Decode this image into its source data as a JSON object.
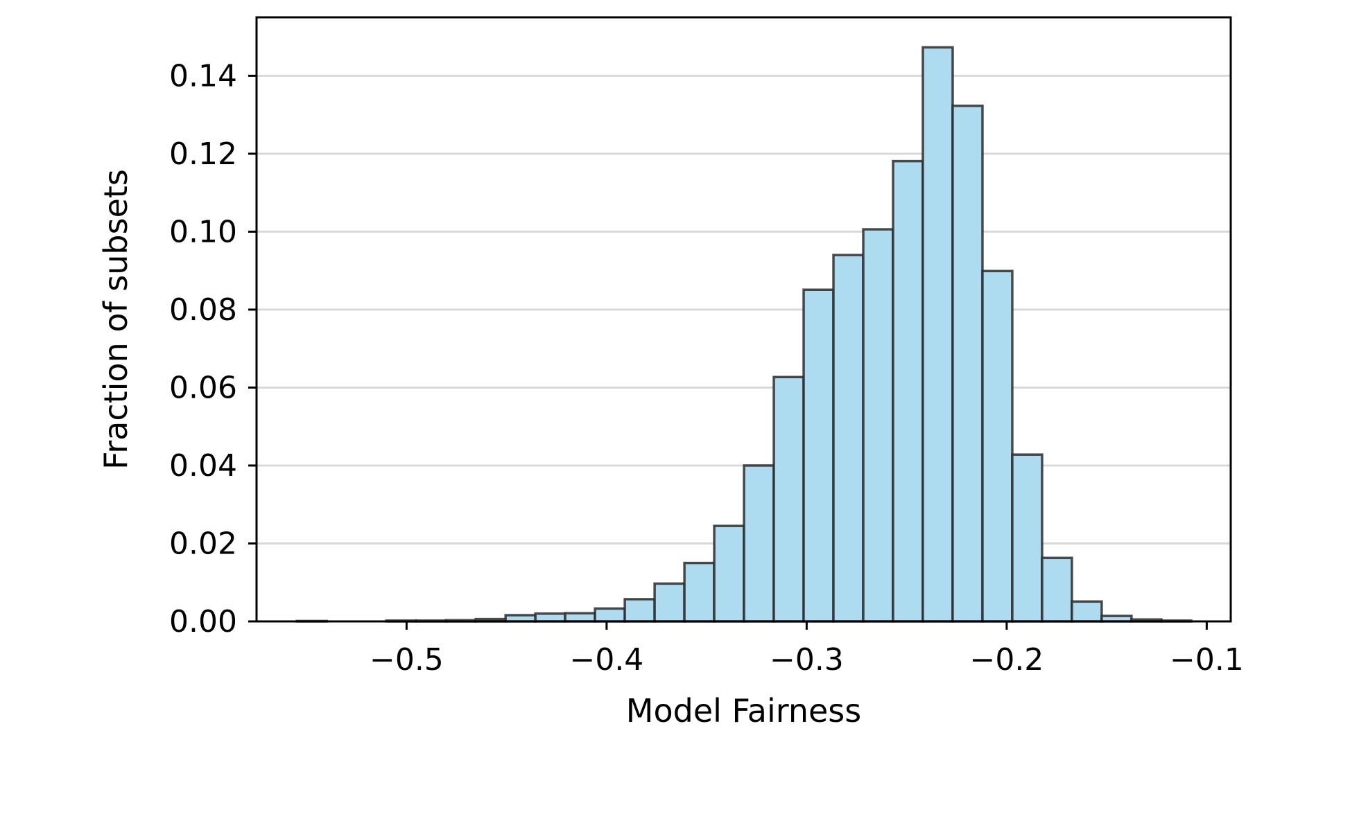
{
  "chart_data": {
    "type": "bar",
    "subtype": "histogram",
    "title": "",
    "xlabel": "Model Fairness",
    "ylabel": "Fraction of subsets",
    "xlim": [
      -0.575,
      -0.088
    ],
    "ylim": [
      0,
      0.155
    ],
    "xticks": [
      -0.5,
      -0.4,
      -0.3,
      -0.2,
      -0.1
    ],
    "xtick_labels": [
      "−0.5",
      "−0.4",
      "−0.3",
      "−0.2",
      "−0.1"
    ],
    "yticks": [
      0,
      0.02,
      0.04,
      0.06,
      0.08,
      0.1,
      0.12,
      0.14
    ],
    "ytick_labels": [
      "0.00",
      "0.02",
      "0.04",
      "0.06",
      "0.08",
      "0.10",
      "0.12",
      "0.14"
    ],
    "grid": "horizontal",
    "legend": "none",
    "bin_edges": [
      -0.5548,
      -0.5399,
      -0.525,
      -0.5101,
      -0.4952,
      -0.4803,
      -0.4654,
      -0.4505,
      -0.4356,
      -0.4207,
      -0.4058,
      -0.3909,
      -0.376,
      -0.3611,
      -0.3462,
      -0.3313,
      -0.3164,
      -0.3015,
      -0.2866,
      -0.2717,
      -0.2568,
      -0.2419,
      -0.227,
      -0.2121,
      -0.1972,
      -0.1823,
      -0.1674,
      -0.1525,
      -0.1376,
      -0.1227,
      -0.1078
    ],
    "values": [
      0.0001,
      0.0,
      0.0,
      0.0002,
      0.0002,
      0.0003,
      0.0006,
      0.0016,
      0.002,
      0.0021,
      0.0033,
      0.0057,
      0.0097,
      0.015,
      0.0245,
      0.04,
      0.0627,
      0.0851,
      0.094,
      0.1006,
      0.1181,
      0.1473,
      0.1323,
      0.0899,
      0.0428,
      0.0163,
      0.0051,
      0.0014,
      0.0005,
      0.0002
    ],
    "colors": {
      "bar_fill": "#ADDBF0",
      "bar_edge": "#2b2b2b",
      "grid": "#d9d9d9",
      "axis": "#000000"
    }
  }
}
